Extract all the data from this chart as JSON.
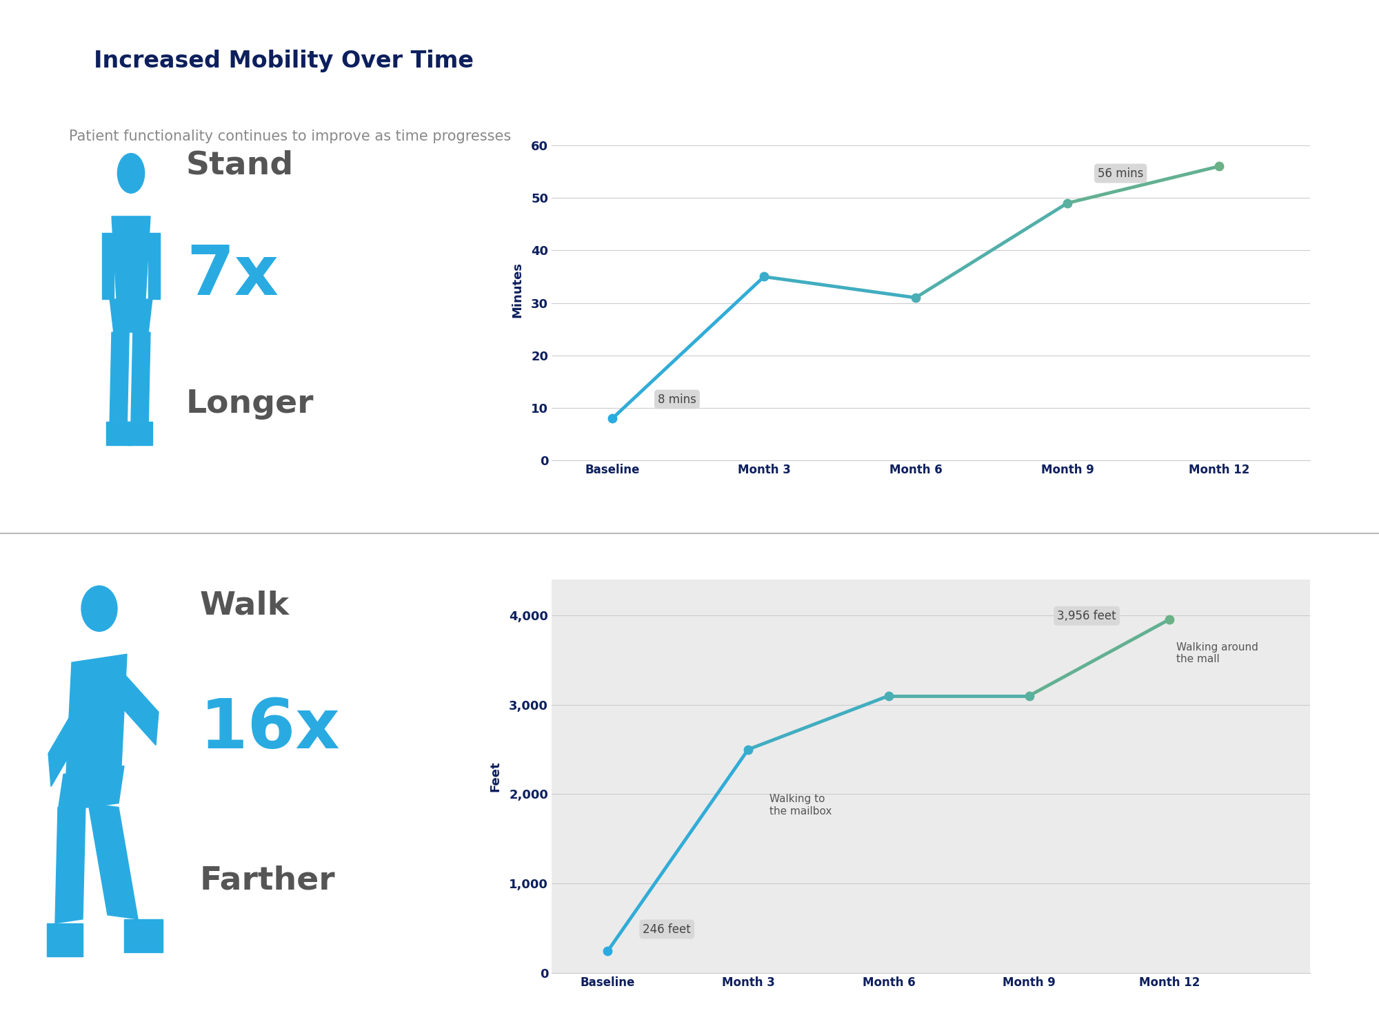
{
  "title": "Increased Mobility Over Time",
  "subtitle": "Patient functionality continues to improve as time progresses",
  "title_bg_color": "#efefef",
  "title_color": "#0d1f5c",
  "subtitle_color": "#888888",
  "bg_top": "#ffffff",
  "bg_bottom": "#ebebeb",
  "x_labels": [
    "Baseline",
    "Month 3",
    "Month 6",
    "Month 9",
    "Month 12"
  ],
  "chart1": {
    "ylabel": "Minutes",
    "ylim": [
      0,
      65
    ],
    "yticks": [
      0,
      10,
      20,
      30,
      40,
      50,
      60
    ],
    "values": [
      8,
      35,
      31,
      49,
      56
    ],
    "start_label": "8 mins",
    "end_label": "56 mins",
    "stand_text": "Stand",
    "multiplier": "7x",
    "unit_text": "Longer"
  },
  "chart2": {
    "ylabel": "Feet",
    "ylim": [
      0,
      4400
    ],
    "yticks": [
      0,
      1000,
      2000,
      3000,
      4000
    ],
    "values": [
      246,
      2500,
      3100,
      3100,
      3956
    ],
    "start_label": "246 feet",
    "end_label": "3,956 feet",
    "walk_text": "Walk",
    "multiplier": "16x",
    "unit_text": "Farther",
    "annotation1": "Walking to\nthe mailbox",
    "annotation2": "Walking around\nthe mall"
  },
  "dark_blue": "#0d1f5c",
  "blue": "#29abe2",
  "green": "#6ab187",
  "gray_text": "#555555",
  "grid_color": "#cccccc",
  "label_bg": "#d8d8d8"
}
